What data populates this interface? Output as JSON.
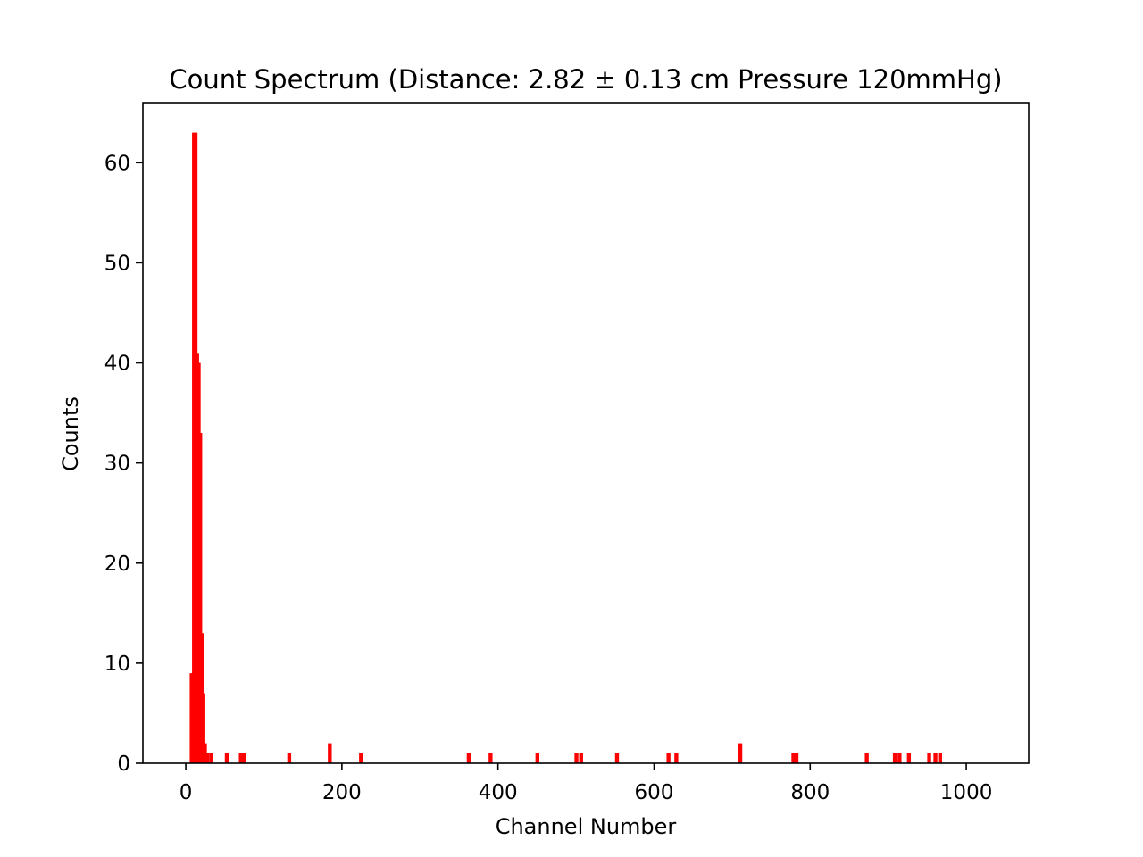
{
  "chart_data": {
    "type": "bar",
    "title": "Count Spectrum (Distance: 2.82 ± 0.13 cm Pressure 120mmHg)",
    "xlabel": "Channel Number",
    "ylabel": "Counts",
    "xlim": [
      -55,
      1080
    ],
    "ylim": [
      0,
      66
    ],
    "xticks": [
      0,
      200,
      400,
      600,
      800,
      1000
    ],
    "yticks": [
      0,
      10,
      20,
      30,
      40,
      50,
      60
    ],
    "bin_width": 5,
    "bar_color": "#ff0000",
    "grid": false,
    "x": [
      5,
      8,
      10,
      12,
      14,
      16,
      18,
      20,
      22,
      25,
      30,
      50,
      68,
      72,
      130,
      182,
      222,
      360,
      388,
      448,
      498,
      504,
      550,
      616,
      626,
      708,
      776,
      780,
      870,
      906,
      912,
      924,
      950,
      958,
      964
    ],
    "values": [
      9,
      63,
      63,
      41,
      40,
      33,
      13,
      7,
      2,
      1,
      1,
      1,
      1,
      1,
      1,
      2,
      1,
      1,
      1,
      1,
      1,
      1,
      1,
      1,
      1,
      2,
      1,
      1,
      1,
      1,
      1,
      1,
      1,
      1,
      1
    ]
  }
}
